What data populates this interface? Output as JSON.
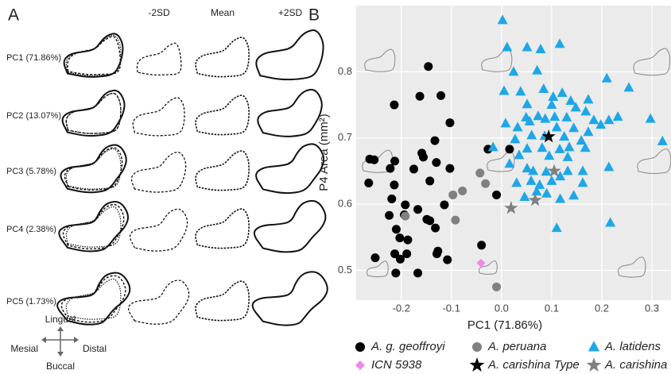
{
  "panel_a": {
    "label": "A",
    "columns": [
      "-2SD",
      "Mean",
      "+2SD"
    ],
    "rows": [
      "PC1 (71.86%)",
      "PC2 (13.07%)",
      "PC3 (5.78%)",
      "PC4 (2.38%)",
      "PC5 (1.73%)"
    ],
    "compass": {
      "north": "Lingual",
      "west": "Mesial",
      "east": "Distal",
      "south": "Buccal"
    }
  },
  "chart_data": {
    "type": "scatter",
    "label": "B",
    "xlabel": "PC1 (71.86%)",
    "ylabel": "P4 Area (mm²)",
    "xlim": [
      -0.29,
      0.338
    ],
    "ylim": [
      0.455,
      0.9
    ],
    "xticks": [
      -0.2,
      -0.1,
      {
        "value": 0,
        "label": "0.0"
      },
      0.1,
      0.2,
      0.3
    ],
    "yticks": [
      0.5,
      0.6,
      0.7,
      0.8
    ],
    "grid": true,
    "series": [
      {
        "name": "A. g. geoffroyi",
        "color": "#000000",
        "marker": "circle",
        "x": [
          -0.146,
          -0.214,
          -0.163,
          -0.121,
          -0.103,
          -0.133,
          -0.159,
          -0.213,
          -0.156,
          -0.13,
          -0.027,
          0.016,
          -0.103,
          -0.175,
          -0.254,
          -0.222,
          -0.214,
          -0.143,
          -0.219,
          -0.192,
          -0.114,
          -0.167,
          -0.194,
          -0.143,
          -0.224,
          -0.132,
          -0.21,
          -0.203,
          -0.187,
          -0.149,
          -0.01,
          -0.127,
          -0.129,
          -0.213,
          -0.202,
          -0.252,
          -0.189,
          -0.108,
          -0.04,
          -0.167,
          -0.211,
          -0.265,
          -0.263
        ],
        "values": [
          0.808,
          0.75,
          0.763,
          0.764,
          0.723,
          0.696,
          0.677,
          0.665,
          0.671,
          0.663,
          0.683,
          0.683,
          0.654,
          0.653,
          0.667,
          0.654,
          0.629,
          0.635,
          0.608,
          0.599,
          0.599,
          0.592,
          0.584,
          0.575,
          0.583,
          0.564,
          0.562,
          0.549,
          0.546,
          0.577,
          0.614,
          0.529,
          0.525,
          0.525,
          0.517,
          0.519,
          0.525,
          0.516,
          0.538,
          0.496,
          0.496,
          0.632,
          0.668
        ]
      },
      {
        "name": "A. peruana",
        "color": "#808080",
        "marker": "circle",
        "x": [
          -0.043,
          -0.032,
          -0.097,
          -0.078,
          -0.092,
          -0.192,
          -0.01
        ],
        "values": [
          0.647,
          0.631,
          0.614,
          0.62,
          0.576,
          0.582,
          0.475
        ]
      },
      {
        "name": "A. latidens",
        "color": "#1ea7e8",
        "marker": "triangle",
        "x": [
          0.002,
          0.051,
          0.078,
          0.116,
          0.011,
          0.024,
          0.071,
          0.21,
          0.254,
          0.005,
          0.038,
          0.084,
          0.121,
          0.103,
          0.173,
          0.138,
          0.051,
          0.1,
          0.148,
          0.168,
          0.049,
          0.073,
          0.106,
          0.087,
          0.13,
          0.184,
          0.214,
          0.232,
          0.008,
          0.032,
          0.056,
          0.11,
          0.144,
          0.173,
          0.198,
          0.297,
          0.321,
          0.027,
          0.06,
          0.086,
          0.125,
          0.159,
          -0.017,
          0.051,
          0.081,
          0.116,
          0.135,
          0.167,
          0.035,
          0.095,
          0.132,
          0.214,
          0.051,
          0.063,
          0.089,
          0.132,
          0.162,
          0.03,
          0.059,
          0.1,
          0.117,
          0.162,
          0.07,
          0.09,
          0.046,
          0.117,
          0.144,
          0.217,
          0.11,
          0.076,
          0.016
        ],
        "values": [
          0.878,
          0.837,
          0.834,
          0.842,
          0.837,
          0.8,
          0.802,
          0.79,
          0.776,
          0.771,
          0.77,
          0.774,
          0.768,
          0.762,
          0.758,
          0.756,
          0.751,
          0.75,
          0.746,
          0.74,
          0.731,
          0.733,
          0.732,
          0.729,
          0.731,
          0.727,
          0.727,
          0.732,
          0.722,
          0.716,
          0.725,
          0.716,
          0.715,
          0.709,
          0.72,
          0.729,
          0.695,
          0.698,
          0.704,
          0.703,
          0.702,
          0.696,
          0.686,
          0.684,
          0.685,
          0.683,
          0.686,
          0.685,
          0.674,
          0.673,
          0.671,
          0.656,
          0.654,
          0.65,
          0.649,
          0.65,
          0.65,
          0.632,
          0.635,
          0.635,
          0.642,
          0.632,
          0.619,
          0.616,
          0.611,
          0.608,
          0.613,
          0.572,
          0.564,
          0.629,
          0.661
        ]
      },
      {
        "name": "ICN 5938",
        "color": "#ee88ee",
        "marker": "diamond",
        "x": [
          -0.041
        ],
        "values": [
          0.511
        ]
      },
      {
        "name": "A. carishina Type",
        "color": "#000000",
        "marker": "star",
        "x": [
          0.094
        ],
        "values": [
          0.702
        ]
      },
      {
        "name": "A. carishina",
        "color": "#808080",
        "marker": "star",
        "x": [
          0.105,
          0.019,
          0.067
        ],
        "values": [
          0.65,
          0.594,
          0.606
        ]
      }
    ]
  }
}
